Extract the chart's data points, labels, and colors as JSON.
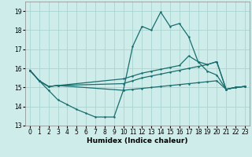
{
  "xlabel": "Humidex (Indice chaleur)",
  "xlim": [
    -0.5,
    23.5
  ],
  "ylim": [
    13,
    19.5
  ],
  "yticks": [
    13,
    14,
    15,
    16,
    17,
    18,
    19
  ],
  "xticks": [
    0,
    1,
    2,
    3,
    4,
    5,
    6,
    7,
    8,
    9,
    10,
    11,
    12,
    13,
    14,
    15,
    16,
    17,
    18,
    19,
    20,
    21,
    22,
    23
  ],
  "bg_color": "#ceecea",
  "grid_color": "#aad4d0",
  "line_color": "#1a6e6e",
  "series": [
    {
      "x": [
        0,
        1,
        2,
        3,
        4,
        5,
        6,
        7,
        8,
        9,
        10,
        11,
        12,
        13,
        14,
        15,
        16,
        17,
        18,
        19,
        20,
        21,
        22,
        23
      ],
      "y": [
        15.9,
        15.35,
        14.85,
        14.35,
        14.1,
        13.85,
        13.65,
        13.45,
        13.45,
        13.45,
        14.85,
        17.15,
        18.2,
        18.0,
        18.95,
        18.2,
        18.35,
        17.65,
        16.35,
        15.85,
        15.65,
        14.9,
        15.0,
        15.05
      ]
    },
    {
      "x": [
        0,
        1,
        2,
        3,
        10,
        11,
        12,
        13,
        14,
        15,
        16,
        17,
        18,
        19,
        20,
        21,
        22,
        23
      ],
      "y": [
        15.9,
        15.35,
        15.05,
        15.1,
        15.45,
        15.6,
        15.75,
        15.85,
        15.95,
        16.05,
        16.15,
        16.65,
        16.35,
        16.2,
        16.35,
        14.9,
        15.0,
        15.05
      ]
    },
    {
      "x": [
        0,
        1,
        2,
        3,
        10,
        11,
        12,
        13,
        14,
        15,
        16,
        17,
        18,
        19,
        20,
        21,
        22,
        23
      ],
      "y": [
        15.9,
        15.35,
        15.05,
        15.1,
        15.2,
        15.35,
        15.5,
        15.6,
        15.7,
        15.8,
        15.9,
        16.0,
        16.1,
        16.2,
        16.35,
        14.9,
        15.0,
        15.05
      ]
    },
    {
      "x": [
        0,
        1,
        2,
        3,
        10,
        11,
        12,
        13,
        14,
        15,
        16,
        17,
        18,
        19,
        20,
        21,
        22,
        23
      ],
      "y": [
        15.9,
        15.35,
        15.05,
        15.1,
        14.85,
        14.9,
        14.95,
        15.0,
        15.05,
        15.1,
        15.15,
        15.2,
        15.25,
        15.3,
        15.35,
        14.9,
        15.0,
        15.05
      ]
    }
  ]
}
